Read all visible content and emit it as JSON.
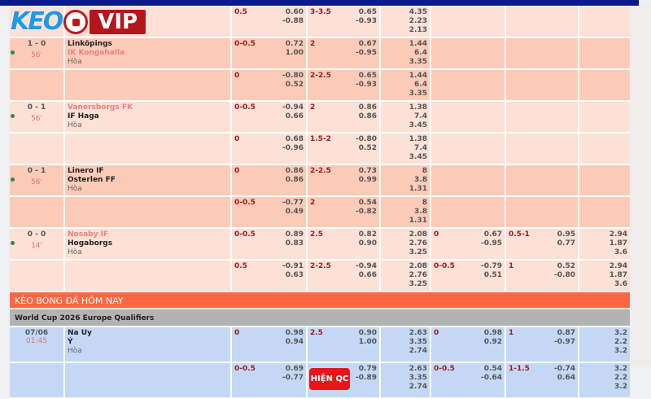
{
  "logo": {
    "text_keo": "KEO",
    "text_vip": "VIP"
  },
  "live_rows": [
    {
      "shade": "light",
      "score": "",
      "minute": "",
      "home": "",
      "away": "",
      "draw": "",
      "home_pink": false,
      "away_pink": false,
      "hdp_line": "0.5",
      "hdp": [
        "0.60",
        "-0.88"
      ],
      "ou_line": "3-3.5",
      "ou": [
        "0.65",
        "-0.93"
      ],
      "x12": [
        "4.35",
        "2.23",
        "2.13"
      ],
      "h1_hdp_line": "",
      "h1_hdp": [],
      "h1_ou_line": "",
      "h1_ou": [],
      "h1_x12": []
    },
    {
      "shade": "dark",
      "score": "1 - 0",
      "minute": "56'",
      "home": "Linköpings",
      "away": "IK Kongahalla",
      "draw": "Hòa",
      "home_pink": false,
      "away_pink": true,
      "hdp_line": "0-0.5",
      "hdp": [
        "0.72",
        "1.00"
      ],
      "ou_line": "2",
      "ou": [
        "0.67",
        "-0.95"
      ],
      "x12": [
        "1.44",
        "6.4",
        "3.35"
      ],
      "h1_hdp_line": "",
      "h1_hdp": [],
      "h1_ou_line": "",
      "h1_ou": [],
      "h1_x12": []
    },
    {
      "shade": "dark",
      "score": "",
      "minute": "",
      "home": "",
      "away": "",
      "draw": "",
      "hdp_line": "0",
      "hdp": [
        "-0.80",
        "0.52"
      ],
      "ou_line": "2-2.5",
      "ou": [
        "0.65",
        "-0.93"
      ],
      "x12": [
        "1.44",
        "6.4",
        "3.35"
      ],
      "h1_hdp_line": "",
      "h1_hdp": [],
      "h1_ou_line": "",
      "h1_ou": [],
      "h1_x12": []
    },
    {
      "shade": "light",
      "score": "0 - 1",
      "minute": "56'",
      "home": "Vanersborgs FK",
      "away": "IF Haga",
      "draw": "Hòa",
      "home_pink": true,
      "away_pink": false,
      "hdp_line": "0-0.5",
      "hdp": [
        "-0.94",
        "0.66"
      ],
      "ou_line": "2",
      "ou": [
        "0.86",
        "0.86"
      ],
      "x12": [
        "1.38",
        "7.4",
        "3.45"
      ],
      "h1_hdp_line": "",
      "h1_hdp": [],
      "h1_ou_line": "",
      "h1_ou": [],
      "h1_x12": []
    },
    {
      "shade": "light",
      "score": "",
      "minute": "",
      "home": "",
      "away": "",
      "draw": "",
      "hdp_line": "0",
      "hdp": [
        "0.68",
        "-0.96"
      ],
      "ou_line": "1.5-2",
      "ou": [
        "-0.80",
        "0.52"
      ],
      "x12": [
        "1.38",
        "7.4",
        "3.45"
      ],
      "h1_hdp_line": "",
      "h1_hdp": [],
      "h1_ou_line": "",
      "h1_ou": [],
      "h1_x12": []
    },
    {
      "shade": "dark",
      "score": "0 - 1",
      "minute": "56'",
      "home": "Linero IF",
      "away": "Osterlen FF",
      "draw": "Hòa",
      "home_pink": false,
      "away_pink": false,
      "hdp_line": "0",
      "hdp": [
        "0.86",
        "0.86"
      ],
      "ou_line": "2-2.5",
      "ou": [
        "0.73",
        "0.99"
      ],
      "x12": [
        "8",
        "3.8",
        "1.31"
      ],
      "h1_hdp_line": "",
      "h1_hdp": [],
      "h1_ou_line": "",
      "h1_ou": [],
      "h1_x12": []
    },
    {
      "shade": "dark",
      "score": "",
      "minute": "",
      "home": "",
      "away": "",
      "draw": "",
      "hdp_line": "0-0.5",
      "hdp": [
        "-0.77",
        "0.49"
      ],
      "ou_line": "2",
      "ou": [
        "0.54",
        "-0.82"
      ],
      "x12": [
        "8",
        "3.8",
        "1.31"
      ],
      "h1_hdp_line": "",
      "h1_hdp": [],
      "h1_ou_line": "",
      "h1_ou": [],
      "h1_x12": []
    },
    {
      "shade": "light",
      "score": "0 - 0",
      "minute": "14'",
      "home": "Nosaby IF",
      "away": "Hogaborgs",
      "draw": "Hòa",
      "home_pink": true,
      "away_pink": false,
      "hdp_line": "0-0.5",
      "hdp": [
        "0.89",
        "0.83"
      ],
      "ou_line": "2.5",
      "ou": [
        "0.82",
        "0.90"
      ],
      "x12": [
        "2.08",
        "2.76",
        "3.25"
      ],
      "h1_hdp_line": "0",
      "h1_hdp": [
        "0.67",
        "-0.95"
      ],
      "h1_ou_line": "0.5-1",
      "h1_ou": [
        "0.95",
        "0.77"
      ],
      "h1_x12": [
        "2.94",
        "1.87",
        "3.6"
      ]
    },
    {
      "shade": "light",
      "score": "",
      "minute": "",
      "home": "",
      "away": "",
      "draw": "",
      "hdp_line": "0.5",
      "hdp": [
        "-0.91",
        "0.63"
      ],
      "ou_line": "2-2.5",
      "ou": [
        "-0.94",
        "0.66"
      ],
      "x12": [
        "2.08",
        "2.76",
        "3.25"
      ],
      "h1_hdp_line": "0-0.5",
      "h1_hdp": [
        "-0.79",
        "0.51"
      ],
      "h1_ou_line": "1",
      "h1_ou": [
        "0.52",
        "-0.80"
      ],
      "h1_x12": [
        "2.94",
        "1.87",
        "3.6"
      ]
    }
  ],
  "section_title": "KÈO BÓNG ĐÁ HÔM NAY",
  "league": "World Cup 2026 Europe Qualifiers",
  "upcoming_rows": [
    {
      "shade": "blue",
      "date": "07/06",
      "hour": "01:45",
      "home": "Na Uy",
      "away": "Ý",
      "draw": "Hòa",
      "hdp_line": "0",
      "hdp": [
        "0.98",
        "0.94"
      ],
      "ou_line": "2.5",
      "ou": [
        "0.90",
        "1.00"
      ],
      "x12": [
        "2.63",
        "3.35",
        "2.74"
      ],
      "h1_hdp_line": "0",
      "h1_hdp": [
        "0.98",
        "0.92"
      ],
      "h1_ou_line": "1",
      "h1_ou": [
        "0.87",
        "-0.97"
      ],
      "h1_x12": [
        "3.2",
        "2.2",
        "3.2"
      ]
    },
    {
      "shade": "blue",
      "date": "",
      "hour": "",
      "home": "",
      "away": "",
      "draw": "",
      "hdp_line": "0-0.5",
      "hdp": [
        "0.69",
        "-0.77"
      ],
      "ou_line": "",
      "ou": [
        "0.79",
        "-0.89"
      ],
      "x12": [
        "2.63",
        "3.35",
        "2.74"
      ],
      "h1_hdp_line": "0-0.5",
      "h1_hdp": [
        "0.54",
        "-0.64"
      ],
      "h1_ou_line": "1-1.5",
      "h1_ou": [
        "-0.74",
        "0.64"
      ],
      "h1_x12": [
        "3.2",
        "2.2",
        "3.2"
      ]
    }
  ],
  "ad_button": "HIỆN QC",
  "colors": {
    "live_light": "#fde0d6",
    "live_dark": "#fccbb8",
    "upcoming": "#c4d8f5",
    "section": "#ff6644",
    "header": "#0a1a8c",
    "line_text": "#9b1c1c"
  }
}
